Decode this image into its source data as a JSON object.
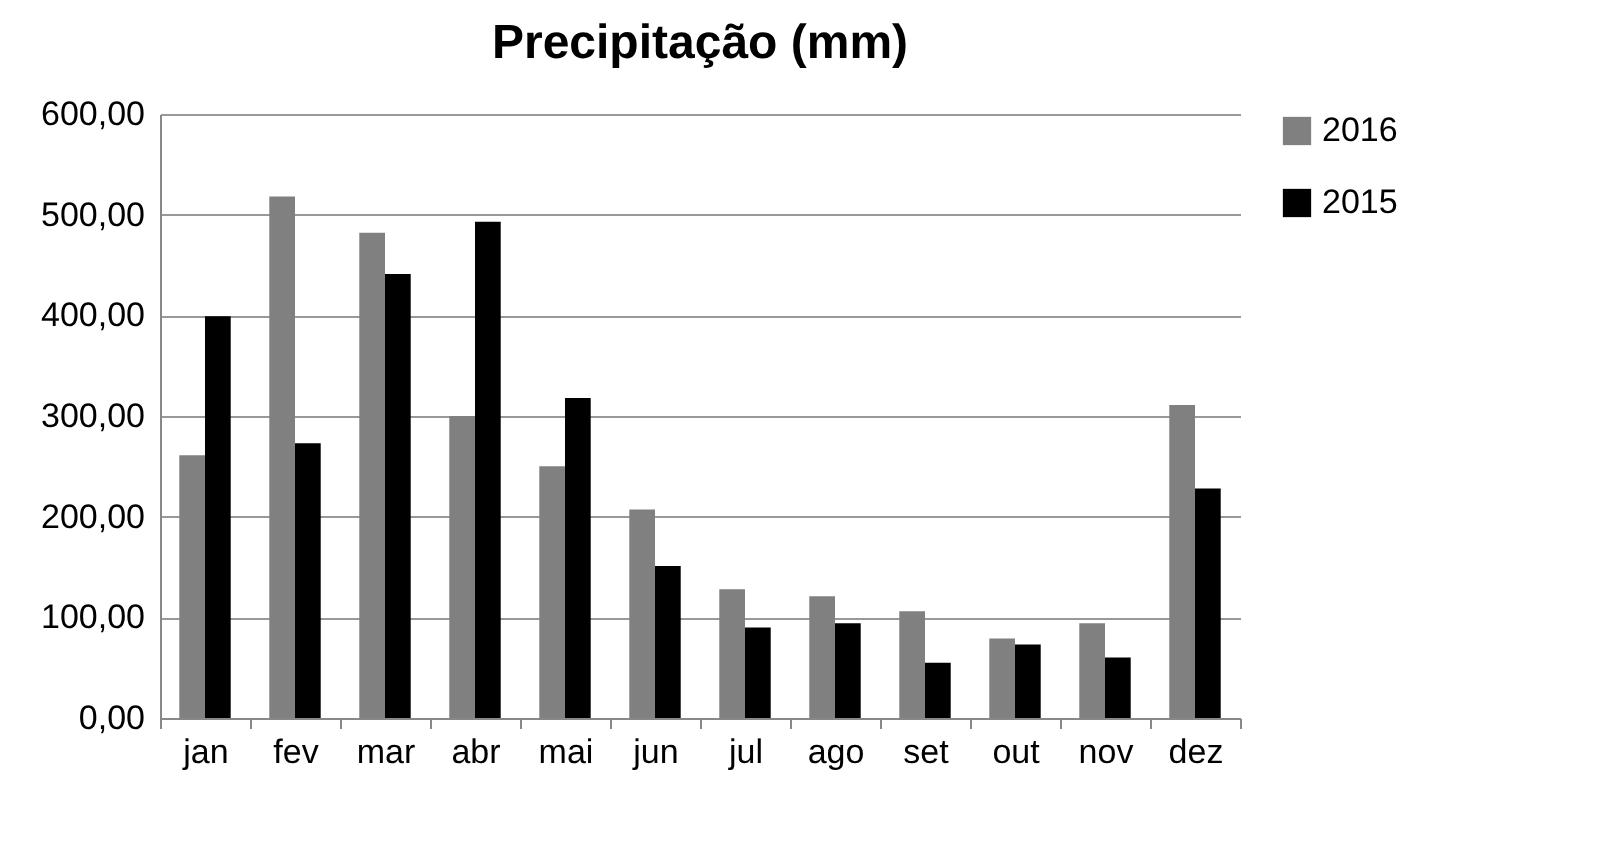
{
  "chart_data": {
    "type": "bar",
    "title": "Precipitação (mm)",
    "categories": [
      "jan",
      "fev",
      "mar",
      "abr",
      "mai",
      "jun",
      "jul",
      "ago",
      "set",
      "out",
      "nov",
      "dez"
    ],
    "series": [
      {
        "name": "2016",
        "color": "#808080",
        "values": [
          261,
          518,
          482,
          300,
          250,
          207,
          128,
          121,
          106,
          79,
          94,
          311
        ]
      },
      {
        "name": "2015",
        "color": "#000000",
        "values": [
          399,
          273,
          441,
          493,
          318,
          151,
          90,
          94,
          55,
          73,
          60,
          228
        ]
      }
    ],
    "ylim": [
      0,
      600
    ],
    "yticks": [
      {
        "value": 0,
        "label": "0,00"
      },
      {
        "value": 100,
        "label": "100,00"
      },
      {
        "value": 200,
        "label": "200,00"
      },
      {
        "value": 300,
        "label": "300,00"
      },
      {
        "value": 400,
        "label": "400,00"
      },
      {
        "value": 500,
        "label": "500,00"
      },
      {
        "value": 600,
        "label": "600,00"
      }
    ],
    "grid": "y",
    "legend": "right"
  }
}
